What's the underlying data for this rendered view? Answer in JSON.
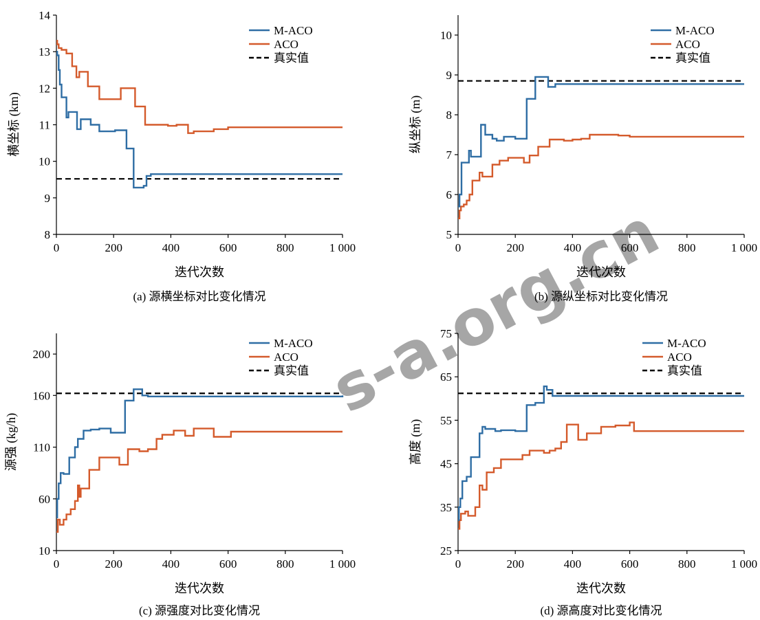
{
  "colors": {
    "maco": "#2e6da4",
    "aco": "#d45a2b",
    "true": "#000000",
    "watermark": "#c9c9c9"
  },
  "legend_labels": {
    "maco": "M-ACO",
    "aco": "ACO",
    "true": "真实值"
  },
  "watermark": "s-a.org.cn",
  "chart_data": [
    {
      "type": "line",
      "caption": "(a) 源横坐标对比变化情况",
      "xlabel": "迭代次数",
      "ylabel": "横坐标 (km)",
      "xlim": [
        0,
        1000
      ],
      "ylim": [
        8,
        14
      ],
      "xticks": [
        0,
        200,
        400,
        600,
        800,
        1000
      ],
      "xtick_labels": [
        "0",
        "200",
        "400",
        "600",
        "800",
        "1 000"
      ],
      "yticks": [
        8,
        9,
        10,
        11,
        12,
        13,
        14
      ],
      "ytick_labels": [
        "8",
        "9",
        "10",
        "11",
        "12",
        "13",
        "14"
      ],
      "true_value": 9.52,
      "series": [
        {
          "name": "M-ACO",
          "step": true,
          "x": [
            0,
            3,
            8,
            12,
            18,
            35,
            42,
            55,
            72,
            85,
            100,
            120,
            150,
            180,
            205,
            245,
            270,
            305,
            315,
            330,
            1000
          ],
          "y": [
            13.0,
            12.9,
            12.5,
            12.1,
            11.75,
            11.2,
            11.35,
            11.35,
            10.88,
            11.15,
            11.15,
            11.0,
            10.82,
            10.82,
            10.85,
            10.35,
            9.28,
            9.33,
            9.6,
            9.65,
            9.65
          ]
        },
        {
          "name": "ACO",
          "step": true,
          "x": [
            0,
            3,
            8,
            18,
            35,
            55,
            70,
            80,
            100,
            110,
            150,
            180,
            215,
            225,
            245,
            275,
            300,
            310,
            350,
            390,
            420,
            440,
            460,
            480,
            550,
            600,
            1000
          ],
          "y": [
            13.3,
            13.2,
            13.1,
            13.05,
            12.95,
            12.6,
            12.3,
            12.45,
            12.45,
            12.05,
            11.7,
            11.7,
            11.7,
            12.0,
            12.0,
            11.5,
            11.5,
            11.0,
            11.0,
            10.97,
            11.0,
            11.0,
            10.77,
            10.82,
            10.88,
            10.93,
            10.93
          ]
        }
      ]
    },
    {
      "type": "line",
      "caption": "(b) 源纵坐标对比变化情况",
      "xlabel": "迭代次数",
      "ylabel": "纵坐标 (m)",
      "xlim": [
        0,
        1000
      ],
      "ylim": [
        5,
        10.5
      ],
      "xticks": [
        0,
        200,
        400,
        600,
        800,
        1000
      ],
      "xtick_labels": [
        "0",
        "200",
        "400",
        "600",
        "800",
        "1 000"
      ],
      "yticks": [
        5,
        6,
        7,
        8,
        9,
        10
      ],
      "ytick_labels": [
        "5",
        "6",
        "7",
        "8",
        "9",
        "10"
      ],
      "true_value": 8.85,
      "series": [
        {
          "name": "M-ACO",
          "step": true,
          "x": [
            0,
            5,
            12,
            30,
            38,
            45,
            65,
            80,
            95,
            120,
            135,
            160,
            200,
            240,
            270,
            290,
            315,
            340,
            1000
          ],
          "y": [
            5.7,
            6.0,
            6.8,
            6.8,
            7.1,
            6.95,
            6.95,
            7.75,
            7.5,
            7.4,
            7.35,
            7.45,
            7.4,
            8.4,
            8.95,
            8.95,
            8.7,
            8.77,
            8.77
          ]
        },
        {
          "name": "ACO",
          "step": true,
          "x": [
            0,
            5,
            10,
            20,
            30,
            40,
            50,
            60,
            75,
            85,
            100,
            120,
            145,
            175,
            200,
            230,
            250,
            280,
            320,
            370,
            400,
            430,
            460,
            500,
            560,
            600,
            1000
          ],
          "y": [
            5.4,
            5.6,
            5.7,
            5.75,
            5.85,
            6.0,
            6.35,
            6.35,
            6.55,
            6.45,
            6.45,
            6.75,
            6.85,
            6.92,
            6.92,
            6.8,
            6.98,
            7.2,
            7.38,
            7.35,
            7.38,
            7.4,
            7.5,
            7.5,
            7.48,
            7.45,
            7.45
          ]
        }
      ]
    },
    {
      "type": "line",
      "caption": "(c) 源强度对比变化情况",
      "xlabel": "迭代次数",
      "ylabel": "源强 (kg/h)",
      "xlim": [
        0,
        1000
      ],
      "ylim": [
        10,
        220
      ],
      "xticks": [
        0,
        200,
        400,
        600,
        800,
        1000
      ],
      "xtick_labels": [
        "0",
        "200",
        "400",
        "600",
        "800",
        "1 000"
      ],
      "yticks": [
        10,
        60,
        110,
        160,
        200
      ],
      "ytick_labels": [
        "10",
        "60",
        "110",
        "160",
        "200"
      ],
      "true_value": 162,
      "series": [
        {
          "name": "M-ACO",
          "step": true,
          "x": [
            0,
            3,
            8,
            15,
            25,
            45,
            65,
            75,
            95,
            120,
            150,
            190,
            240,
            270,
            300,
            320,
            1000
          ],
          "y": [
            42,
            60,
            75,
            85,
            84,
            100,
            110,
            118,
            126,
            127,
            128,
            124,
            155,
            166,
            160,
            159,
            160
          ]
        },
        {
          "name": "ACO",
          "step": true,
          "x": [
            0,
            5,
            12,
            25,
            35,
            50,
            65,
            75,
            80,
            85,
            95,
            115,
            150,
            200,
            220,
            250,
            290,
            320,
            350,
            370,
            410,
            450,
            480,
            550,
            610,
            1000
          ],
          "y": [
            28,
            40,
            35,
            40,
            45,
            50,
            58,
            73,
            62,
            70,
            70,
            88,
            100,
            100,
            93,
            108,
            106,
            108,
            118,
            122,
            126,
            121,
            128,
            120,
            125,
            125
          ]
        }
      ]
    },
    {
      "type": "line",
      "caption": "(d) 源高度对比变化情况",
      "xlabel": "迭代次数",
      "ylabel": "高度 (m)",
      "xlim": [
        0,
        1000
      ],
      "ylim": [
        25,
        75
      ],
      "xticks": [
        0,
        200,
        400,
        600,
        800,
        1000
      ],
      "xtick_labels": [
        "0",
        "200",
        "400",
        "600",
        "800",
        "1 000"
      ],
      "yticks": [
        25,
        35,
        45,
        55,
        65,
        75
      ],
      "ytick_labels": [
        "25",
        "35",
        "45",
        "55",
        "65",
        "75"
      ],
      "true_value": 61.2,
      "series": [
        {
          "name": "M-ACO",
          "step": true,
          "x": [
            0,
            3,
            8,
            15,
            30,
            45,
            75,
            85,
            95,
            130,
            150,
            200,
            240,
            270,
            300,
            310,
            330,
            1000
          ],
          "y": [
            32,
            35,
            37,
            41,
            42,
            46.5,
            52,
            53.5,
            53,
            52.5,
            52.7,
            52.5,
            58.5,
            59,
            62.8,
            62,
            60.6,
            60.6
          ]
        },
        {
          "name": "ACO",
          "step": true,
          "x": [
            0,
            5,
            10,
            25,
            35,
            60,
            75,
            85,
            100,
            125,
            150,
            200,
            225,
            250,
            300,
            320,
            340,
            360,
            380,
            420,
            450,
            500,
            550,
            600,
            615,
            1000
          ],
          "y": [
            30,
            32,
            33.5,
            34,
            33,
            35,
            40,
            39,
            43,
            44,
            46,
            46,
            47,
            48,
            47.5,
            48,
            48.5,
            50,
            54,
            50.5,
            52,
            53.5,
            53.8,
            54.5,
            52.5,
            52.5
          ]
        }
      ]
    }
  ]
}
